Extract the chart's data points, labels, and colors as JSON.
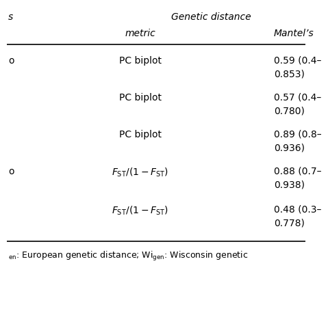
{
  "title_left": "s",
  "title_center": "Genetic distance",
  "subheader_metric": "metric",
  "subheader_mantel": "Mantel’s",
  "rows": [
    {
      "col1": "o",
      "col2": "PC biplot",
      "col3_line1": "0.59 (0.4–",
      "col3_line2": "0.853)"
    },
    {
      "col1": "",
      "col2": "PC biplot",
      "col3_line1": "0.57 (0.4–",
      "col3_line2": "0.780)"
    },
    {
      "col1": "",
      "col2": "PC biplot",
      "col3_line1": "0.89 (0.8–",
      "col3_line2": "0.936)"
    },
    {
      "col1": "o",
      "col2": "fst",
      "col3_line1": "0.88 (0.7–",
      "col3_line2": "0.938)"
    },
    {
      "col1": "",
      "col2": "fst",
      "col3_line1": "0.48 (0.3–",
      "col3_line2": "0.778)"
    }
  ],
  "footnote_gen": "en",
  "footnote_text1": ": European genetic distance; Wi",
  "footnote_gen2": "gen",
  "footnote_text2": ": Wisconsin genetic",
  "bg_color": "#ffffff",
  "text_color": "#000000",
  "line_color": "#000000",
  "fontsize_header": 10,
  "fontsize_body": 10,
  "fontsize_footnote": 9
}
